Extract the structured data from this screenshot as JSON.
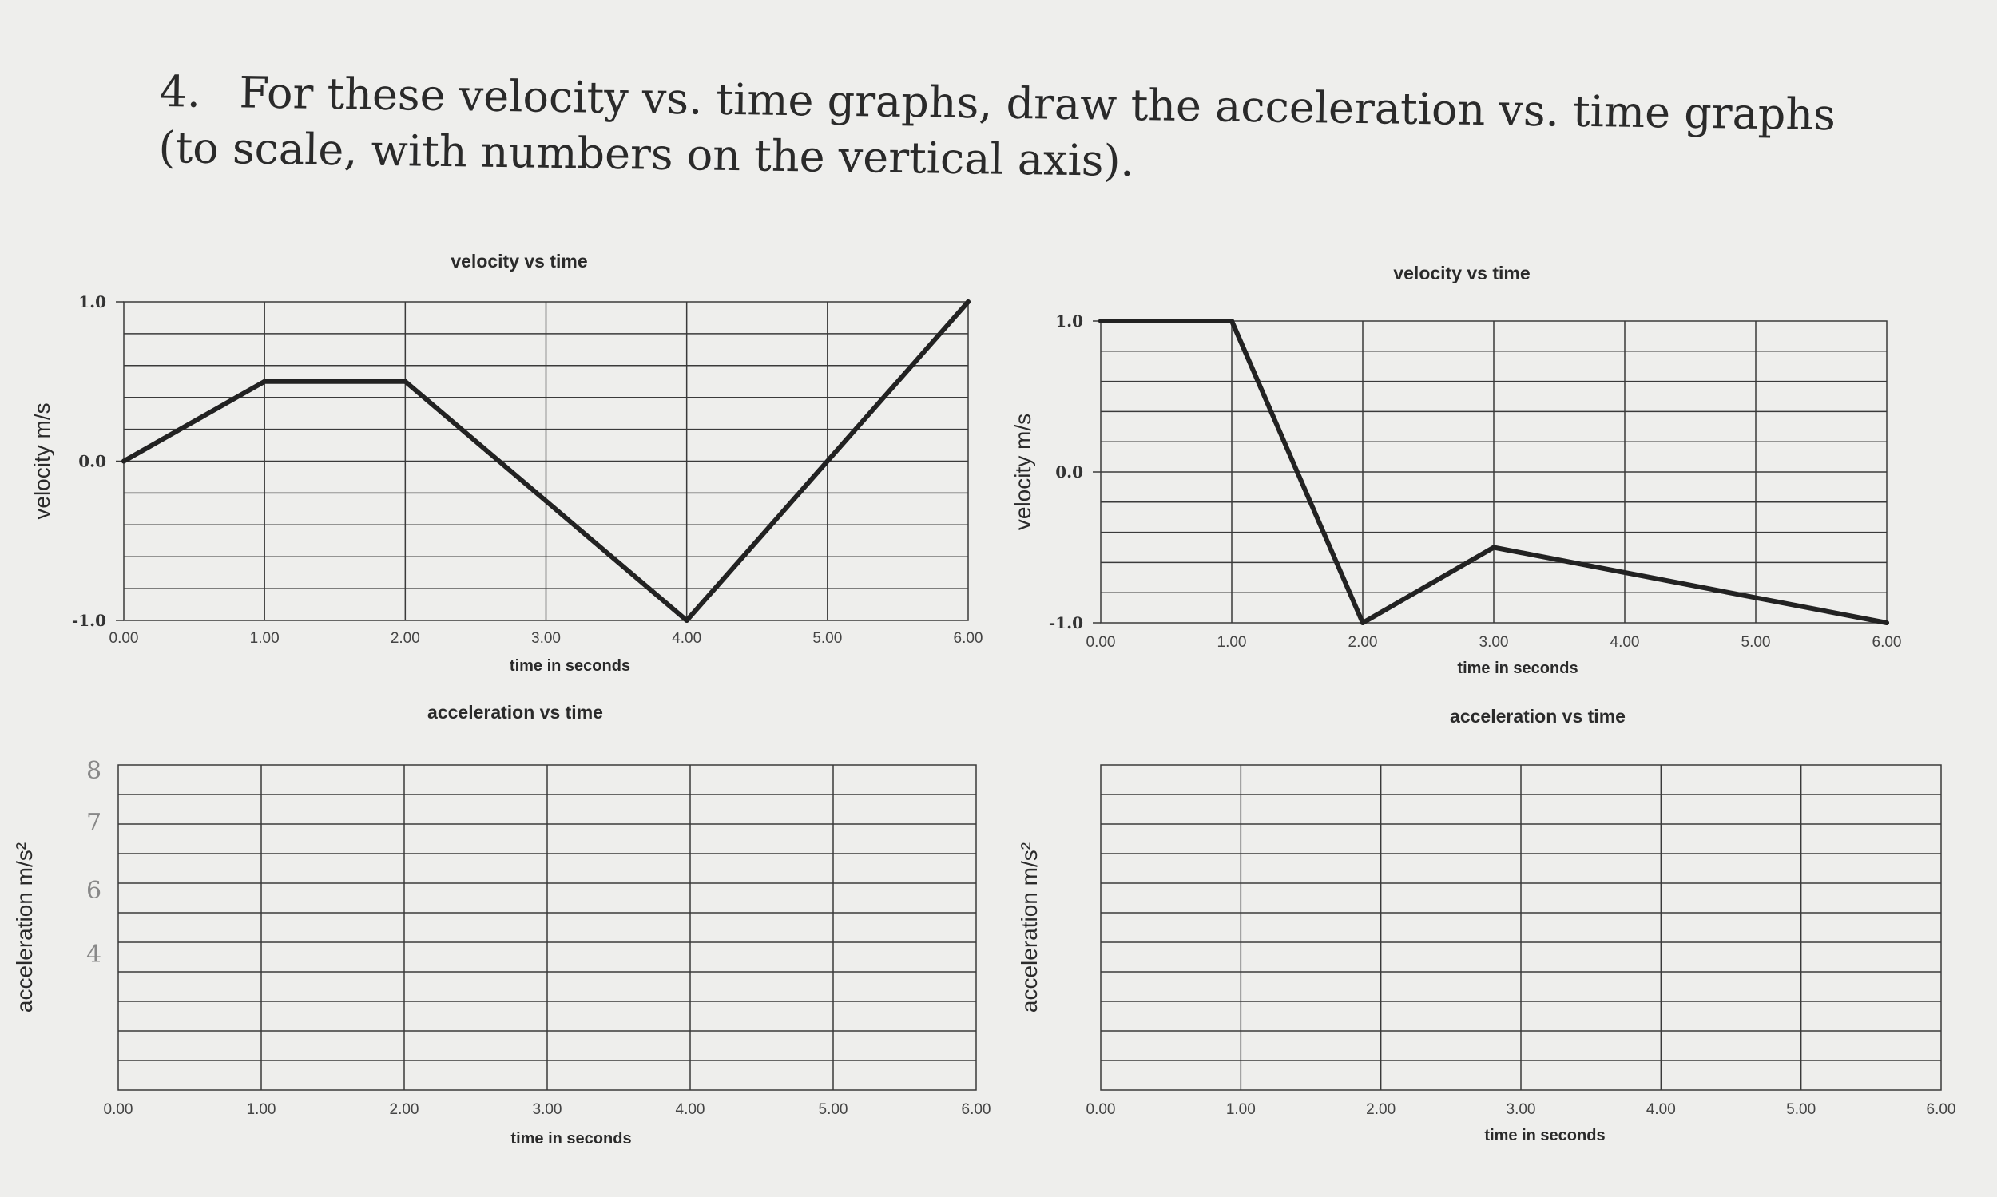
{
  "question": {
    "number": "4.",
    "text": "For these velocity vs. time graphs, draw the acceleration vs. time graphs (to scale, with numbers on the vertical axis)."
  },
  "colors": {
    "paper": "#eeeeec",
    "ink": "#222222",
    "grid": "#3a3a3a",
    "pencil": "#888888"
  },
  "handwritten_marks": [
    "8",
    "7",
    "6",
    "4"
  ],
  "chart_data": [
    {
      "type": "line",
      "title": "velocity vs time",
      "xlabel": "time in seconds",
      "ylabel": "velocity m/s",
      "xlim": [
        0,
        6
      ],
      "ylim": [
        -1,
        1
      ],
      "x_ticks": [
        "0.00",
        "1.00",
        "2.00",
        "3.00",
        "4.00",
        "5.00",
        "6.00"
      ],
      "y_ticks": [
        "1.0",
        "0.0",
        "-1.0"
      ],
      "grid": true,
      "series": [
        {
          "x": [
            0,
            1,
            2,
            4,
            6
          ],
          "y": [
            0,
            0.5,
            0.5,
            -1,
            1
          ]
        }
      ]
    },
    {
      "type": "line",
      "title": "velocity vs time",
      "xlabel": "time in seconds",
      "ylabel": "velocity m/s",
      "xlim": [
        0,
        6
      ],
      "ylim": [
        -1,
        1
      ],
      "x_ticks": [
        "0.00",
        "1.00",
        "2.00",
        "3.00",
        "4.00",
        "5.00",
        "6.00"
      ],
      "y_ticks": [
        "1.0",
        "0.0",
        "-1.0"
      ],
      "grid": true,
      "series": [
        {
          "x": [
            0,
            1,
            2,
            3,
            6
          ],
          "y": [
            1,
            1,
            -1,
            -0.5,
            -1
          ]
        }
      ]
    },
    {
      "type": "line",
      "title": "acceleration vs time",
      "xlabel": "time in seconds",
      "ylabel": "acceleration m/s²",
      "xlim": [
        0,
        6
      ],
      "x_ticks": [
        "0.00",
        "1.00",
        "2.00",
        "3.00",
        "4.00",
        "5.00",
        "6.00"
      ],
      "y_ticks": [],
      "grid": true,
      "series": []
    },
    {
      "type": "line",
      "title": "acceleration vs time",
      "xlabel": "time in seconds",
      "ylabel": "acceleration m/s²",
      "xlim": [
        0,
        6
      ],
      "x_ticks": [
        "0.00",
        "1.00",
        "2.00",
        "3.00",
        "4.00",
        "5.00",
        "6.00"
      ],
      "y_ticks": [],
      "grid": true,
      "series": []
    }
  ]
}
